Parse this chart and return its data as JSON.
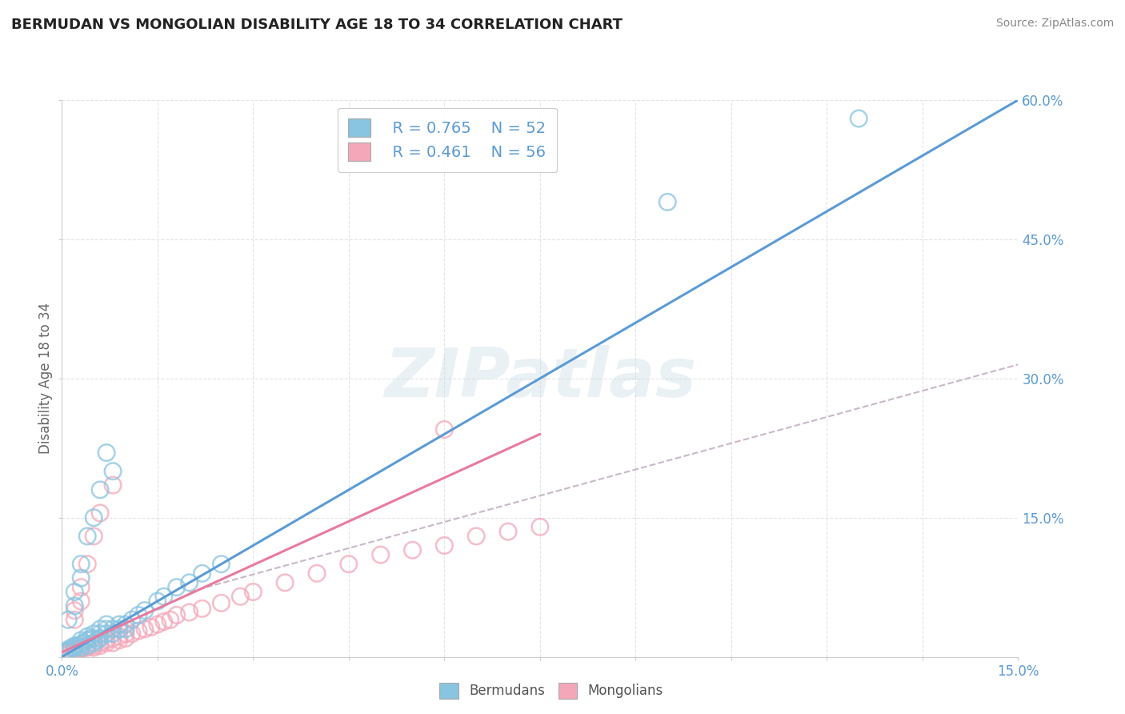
{
  "title": "BERMUDAN VS MONGOLIAN DISABILITY AGE 18 TO 34 CORRELATION CHART",
  "source": "Source: ZipAtlas.com",
  "ylabel": "Disability Age 18 to 34",
  "xlim": [
    0.0,
    0.15
  ],
  "ylim": [
    0.0,
    0.6
  ],
  "legend_r1": "R = 0.765",
  "legend_n1": "N = 52",
  "legend_r2": "R = 0.461",
  "legend_n2": "N = 56",
  "blue_scatter_color": "#89c4e1",
  "pink_scatter_color": "#f4a7b9",
  "line_blue": "#5b9bd5",
  "line_pink": "#e87a9e",
  "line_dash_color": "#c8b8c8",
  "title_color": "#222222",
  "axis_label_color": "#5b9bd5",
  "background_color": "#ffffff",
  "watermark": "ZIPatlas",
  "bermudans_x": [
    0.0005,
    0.001,
    0.001,
    0.0015,
    0.002,
    0.002,
    0.0025,
    0.003,
    0.003,
    0.003,
    0.0035,
    0.004,
    0.004,
    0.004,
    0.0045,
    0.005,
    0.005,
    0.005,
    0.0055,
    0.006,
    0.006,
    0.006,
    0.007,
    0.007,
    0.007,
    0.008,
    0.008,
    0.009,
    0.009,
    0.01,
    0.01,
    0.011,
    0.012,
    0.013,
    0.015,
    0.016,
    0.018,
    0.02,
    0.022,
    0.025,
    0.008,
    0.007,
    0.006,
    0.005,
    0.004,
    0.003,
    0.003,
    0.002,
    0.002,
    0.001,
    0.095,
    0.125
  ],
  "bermudans_y": [
    0.005,
    0.006,
    0.008,
    0.01,
    0.01,
    0.012,
    0.012,
    0.01,
    0.014,
    0.018,
    0.015,
    0.012,
    0.018,
    0.022,
    0.02,
    0.015,
    0.02,
    0.025,
    0.018,
    0.02,
    0.025,
    0.03,
    0.025,
    0.03,
    0.035,
    0.025,
    0.03,
    0.03,
    0.035,
    0.03,
    0.035,
    0.04,
    0.045,
    0.05,
    0.06,
    0.065,
    0.075,
    0.08,
    0.09,
    0.1,
    0.2,
    0.22,
    0.18,
    0.15,
    0.13,
    0.1,
    0.085,
    0.07,
    0.055,
    0.04,
    0.49,
    0.58
  ],
  "mongolians_x": [
    0.0005,
    0.001,
    0.001,
    0.0015,
    0.002,
    0.002,
    0.0025,
    0.003,
    0.003,
    0.004,
    0.004,
    0.005,
    0.005,
    0.005,
    0.006,
    0.006,
    0.007,
    0.007,
    0.008,
    0.008,
    0.009,
    0.009,
    0.01,
    0.01,
    0.011,
    0.012,
    0.013,
    0.014,
    0.015,
    0.016,
    0.017,
    0.018,
    0.02,
    0.022,
    0.025,
    0.028,
    0.03,
    0.035,
    0.04,
    0.045,
    0.05,
    0.055,
    0.06,
    0.065,
    0.07,
    0.075,
    0.008,
    0.006,
    0.005,
    0.004,
    0.003,
    0.003,
    0.002,
    0.002,
    0.06,
    0.003
  ],
  "mongolians_y": [
    0.002,
    0.004,
    0.006,
    0.005,
    0.006,
    0.008,
    0.007,
    0.008,
    0.01,
    0.01,
    0.012,
    0.01,
    0.012,
    0.015,
    0.012,
    0.015,
    0.015,
    0.018,
    0.015,
    0.02,
    0.018,
    0.022,
    0.02,
    0.025,
    0.025,
    0.028,
    0.03,
    0.032,
    0.035,
    0.038,
    0.04,
    0.045,
    0.048,
    0.052,
    0.058,
    0.065,
    0.07,
    0.08,
    0.09,
    0.1,
    0.11,
    0.115,
    0.12,
    0.13,
    0.135,
    0.14,
    0.185,
    0.155,
    0.13,
    0.1,
    0.075,
    0.06,
    0.05,
    0.04,
    0.245,
    0.008
  ],
  "blue_line_x0": 0.0,
  "blue_line_y0": 0.0,
  "blue_line_x1": 0.15,
  "blue_line_y1": 0.6,
  "pink_line_x0": 0.0,
  "pink_line_y0": 0.005,
  "pink_line_x1": 0.075,
  "pink_line_y1": 0.24,
  "dash_line_x0": 0.02,
  "dash_line_y0": 0.07,
  "dash_line_x1": 0.15,
  "dash_line_y1": 0.315
}
